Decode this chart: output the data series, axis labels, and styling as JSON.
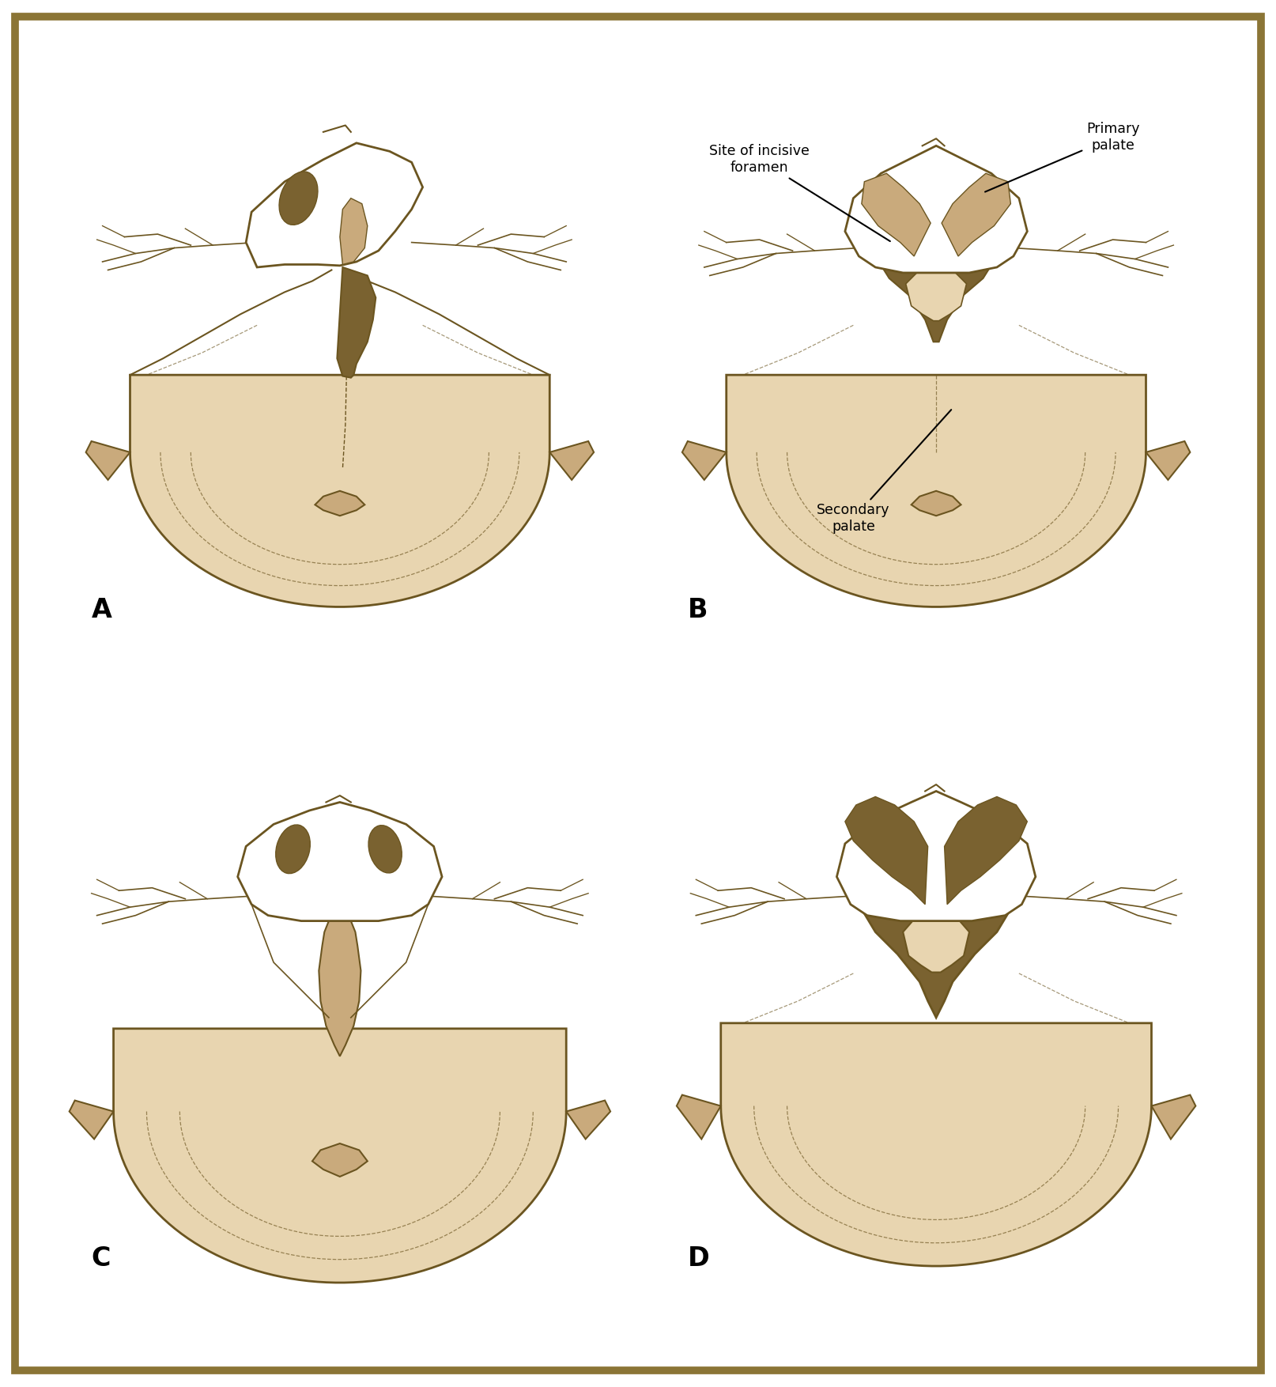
{
  "bg_color": "#ffffff",
  "border_color": "#8B7536",
  "light_fill": "#E8D5B0",
  "mid_fill": "#C9AA7C",
  "dark_fill": "#7A6230",
  "line_color": "#6B5520",
  "text_color": "#000000",
  "fig_width": 16.14,
  "fig_height": 17.54,
  "annotations": {
    "site_of_incisive_foramen": "Site of incisive\nforamen",
    "primary_palate": "Primary\npalate",
    "secondary_palate": "Secondary\npalate"
  }
}
